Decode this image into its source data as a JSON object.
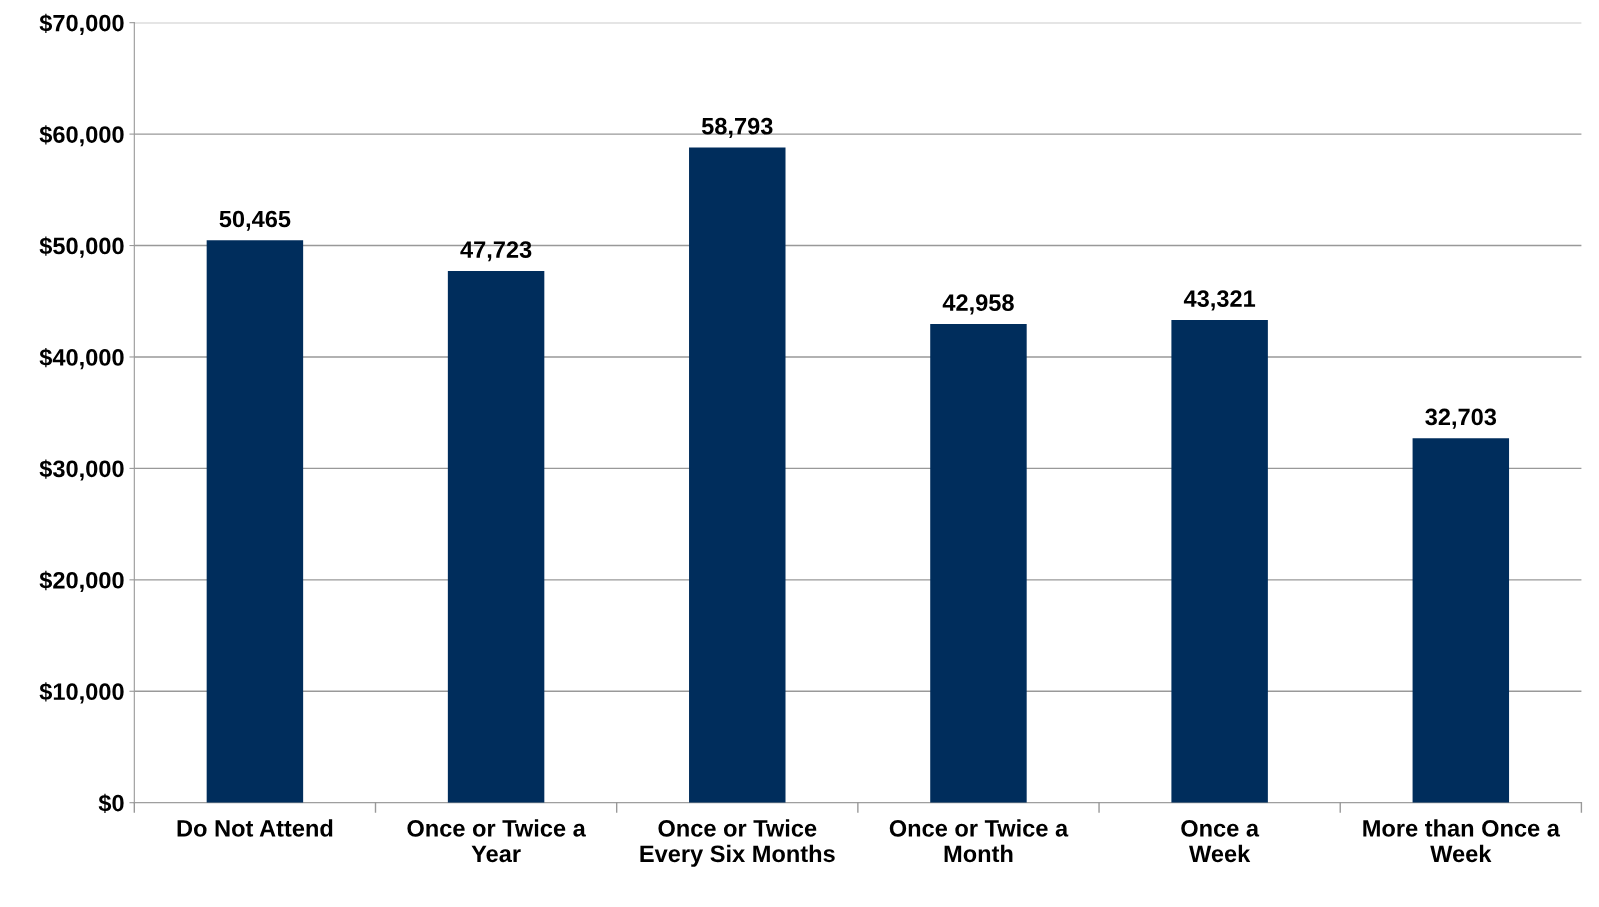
{
  "chart_data": {
    "type": "bar",
    "categories": [
      "Do Not Attend",
      "Once or Twice a Year",
      "Once or Twice Every Six Months",
      "Once or Twice a Month",
      "Once a Week",
      "More than Once a Week"
    ],
    "values": [
      50465,
      47723,
      58793,
      42958,
      43321,
      32703
    ],
    "color": "#002d5c",
    "value_labels": [
      "50,465",
      "47,723",
      "58,793",
      "42,958",
      "43,321",
      "32,703"
    ],
    "ylim": [
      0,
      70000
    ],
    "yticks": [
      {
        "value": 0,
        "label": "$0"
      },
      {
        "value": 10000,
        "label": "$10,000"
      },
      {
        "value": 20000,
        "label": "$20,000"
      },
      {
        "value": 30000,
        "label": "$30,000"
      },
      {
        "value": 40000,
        "label": "$40,000"
      },
      {
        "value": 50000,
        "label": "$50,000"
      },
      {
        "value": 60000,
        "label": "$60,000"
      },
      {
        "value": 70000,
        "label": "$70,000"
      }
    ],
    "grid": "y",
    "legend": false
  }
}
